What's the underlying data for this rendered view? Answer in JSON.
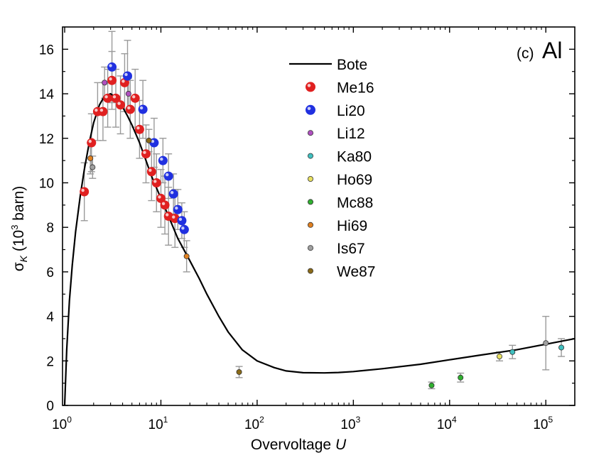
{
  "chart_data": {
    "type": "scatter",
    "panel_label": "(c)",
    "element": "Al",
    "xlabel": "Overvoltage",
    "xlabel_var": "U",
    "ylabel_prefix": "σ",
    "ylabel_sub": "K",
    "ylabel_unit_open": " (10",
    "ylabel_unit_exp": "3",
    "ylabel_unit_close": " barn)",
    "xscale": "log",
    "xlim": [
      0.95,
      200000
    ],
    "ylim": [
      0,
      17
    ],
    "x_tick_bases": [
      "10",
      "10",
      "10",
      "10",
      "10",
      "10"
    ],
    "x_tick_exps": [
      "0",
      "1",
      "2",
      "3",
      "4",
      "5"
    ],
    "x_tick_values": [
      1,
      10,
      100,
      1000,
      10000,
      100000
    ],
    "y_tick_values": [
      0,
      2,
      4,
      6,
      8,
      10,
      12,
      14,
      16
    ],
    "y_tick_labels": [
      "0",
      "2",
      "4",
      "6",
      "8",
      "10",
      "12",
      "14",
      "16"
    ],
    "legend_position": "top-right",
    "curve": {
      "name": "Bote",
      "color": "#000000",
      "x": [
        1.0,
        1.05,
        1.12,
        1.2,
        1.3,
        1.45,
        1.6,
        1.8,
        2.0,
        2.3,
        2.6,
        3.0,
        3.5,
        4.0,
        4.5,
        5.0,
        6.0,
        7.0,
        8.0,
        10,
        12,
        15,
        20,
        25,
        30,
        40,
        50,
        70,
        100,
        150,
        200,
        300,
        500,
        700,
        1000,
        2000,
        5000,
        10000,
        20000,
        50000,
        100000,
        200000
      ],
      "y": [
        0,
        2.5,
        4.7,
        6.3,
        7.8,
        9.4,
        10.6,
        11.8,
        12.7,
        13.5,
        13.9,
        14.0,
        13.8,
        13.4,
        13.0,
        12.6,
        11.8,
        11.0,
        10.3,
        9.3,
        8.5,
        7.5,
        6.5,
        5.7,
        5.0,
        4.0,
        3.3,
        2.5,
        2.0,
        1.7,
        1.55,
        1.47,
        1.46,
        1.48,
        1.52,
        1.65,
        1.85,
        2.05,
        2.25,
        2.5,
        2.75,
        3.0
      ]
    },
    "series": [
      {
        "name": "Me16",
        "color": "#e02020",
        "marker": "large",
        "x": [
          1.6,
          1.9,
          2.2,
          2.5,
          2.8,
          3.1,
          3.4,
          3.8,
          4.2,
          4.8,
          5.4,
          6.0,
          7.0,
          8.0,
          9.0,
          10,
          11,
          12,
          14
        ],
        "y": [
          9.6,
          11.8,
          13.2,
          13.2,
          13.8,
          14.6,
          13.8,
          13.5,
          14.5,
          13.3,
          13.8,
          12.4,
          11.3,
          10.5,
          10.0,
          9.3,
          9.0,
          8.5,
          8.4
        ]
      },
      {
        "name": "Li20",
        "color": "#2030e0",
        "marker": "large",
        "x": [
          3.1,
          4.5,
          6.5,
          8.5,
          10.5,
          12,
          13.5,
          15,
          16.5,
          17.5
        ],
        "y": [
          15.2,
          14.8,
          13.3,
          11.8,
          11.0,
          10.3,
          9.5,
          8.8,
          8.3,
          7.9
        ],
        "err": [
          1.6,
          1.6,
          1.3,
          1.1,
          1.0,
          1.0,
          0.9,
          0.9,
          0.8,
          0.8
        ]
      },
      {
        "name": "Li12",
        "color": "#b050c0",
        "marker": "small",
        "x": [
          2.6,
          4.6
        ],
        "y": [
          14.5,
          14.0
        ]
      },
      {
        "name": "Ka80",
        "color": "#40c0c0",
        "marker": "small",
        "x": [
          45000,
          145000
        ],
        "y": [
          2.4,
          2.6
        ],
        "err": [
          0.3,
          0.4
        ]
      },
      {
        "name": "Ho69",
        "color": "#e8e060",
        "marker": "small",
        "x": [
          33000
        ],
        "y": [
          2.2
        ],
        "err": [
          0.2
        ]
      },
      {
        "name": "Mc88",
        "color": "#30b030",
        "marker": "small",
        "x": [
          6500,
          13000
        ],
        "y": [
          0.9,
          1.25
        ],
        "err": [
          0.15,
          0.2
        ]
      },
      {
        "name": "Hi69",
        "color": "#e08020",
        "marker": "small",
        "x": [
          1.85,
          18.5
        ],
        "y": [
          11.1,
          6.7
        ]
      },
      {
        "name": "Is67",
        "color": "#a0a0a0",
        "marker": "small",
        "x": [
          1.95,
          100000
        ],
        "y": [
          10.7,
          2.8
        ],
        "err": [
          0.5,
          1.2
        ]
      },
      {
        "name": "We87",
        "color": "#8a6a18",
        "marker": "small",
        "x": [
          65,
          7.5
        ],
        "y": [
          1.5,
          11.9
        ],
        "err": [
          0.25,
          0.5
        ]
      }
    ]
  }
}
